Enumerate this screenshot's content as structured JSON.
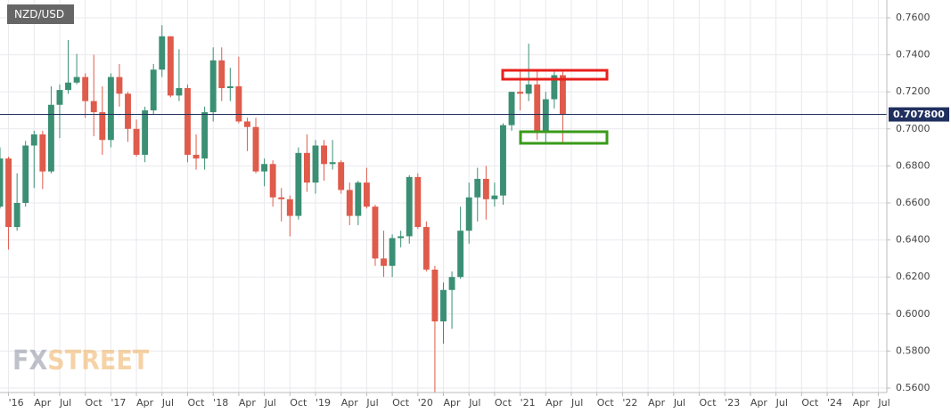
{
  "chart_data": {
    "type": "candlestick",
    "title": "NZD/USD",
    "watermark": [
      "FX",
      "STREET"
    ],
    "x": [
      "2015-12",
      "2016-01",
      "2016-02",
      "2016-03",
      "2016-04",
      "2016-05",
      "2016-06",
      "2016-07",
      "2016-08",
      "2016-09",
      "2016-10",
      "2016-11",
      "2016-12",
      "2017-01",
      "2017-02",
      "2017-03",
      "2017-04",
      "2017-05",
      "2017-06",
      "2017-07",
      "2017-08",
      "2017-09",
      "2017-10",
      "2017-11",
      "2017-12",
      "2018-01",
      "2018-02",
      "2018-03",
      "2018-04",
      "2018-05",
      "2018-06",
      "2018-07",
      "2018-08",
      "2018-09",
      "2018-10",
      "2018-11",
      "2018-12",
      "2019-01",
      "2019-02",
      "2019-03",
      "2019-04",
      "2019-05",
      "2019-06",
      "2019-07",
      "2019-08",
      "2019-09",
      "2019-10",
      "2019-11",
      "2019-12",
      "2020-01",
      "2020-02",
      "2020-03",
      "2020-04",
      "2020-05",
      "2020-06",
      "2020-07",
      "2020-08",
      "2020-09",
      "2020-10",
      "2020-11",
      "2020-12",
      "2021-01",
      "2021-02",
      "2021-03",
      "2021-04",
      "2021-05",
      "2021-06"
    ],
    "open": [
      0.658,
      0.684,
      0.647,
      0.66,
      0.691,
      0.697,
      0.677,
      0.713,
      0.721,
      0.725,
      0.728,
      0.715,
      0.709,
      0.694,
      0.728,
      0.719,
      0.7,
      0.686,
      0.71,
      0.732,
      0.75,
      0.718,
      0.722,
      0.686,
      0.684,
      0.709,
      0.737,
      0.722,
      0.723,
      0.704,
      0.701,
      0.677,
      0.681,
      0.663,
      0.662,
      0.653,
      0.687,
      0.671,
      0.691,
      0.681,
      0.682,
      0.667,
      0.653,
      0.671,
      0.658,
      0.63,
      0.626,
      0.641,
      0.642,
      0.674,
      0.647,
      0.624,
      0.596,
      0.613,
      0.62,
      0.645,
      0.663,
      0.673,
      0.662,
      0.664,
      0.702,
      0.72,
      0.719,
      0.724,
      0.698,
      0.716,
      0.729
    ],
    "high": [
      0.69,
      0.685,
      0.676,
      0.6935,
      0.699,
      0.699,
      0.723,
      0.724,
      0.748,
      0.7405,
      0.73,
      0.74,
      0.723,
      0.73,
      0.735,
      0.72,
      0.705,
      0.712,
      0.735,
      0.756,
      0.75,
      0.743,
      0.724,
      0.697,
      0.712,
      0.744,
      0.744,
      0.733,
      0.739,
      0.706,
      0.706,
      0.684,
      0.683,
      0.668,
      0.664,
      0.69,
      0.697,
      0.694,
      0.694,
      0.694,
      0.683,
      0.671,
      0.672,
      0.679,
      0.659,
      0.645,
      0.643,
      0.645,
      0.675,
      0.676,
      0.65,
      0.626,
      0.617,
      0.623,
      0.658,
      0.671,
      0.679,
      0.68,
      0.671,
      0.703,
      0.72,
      0.731,
      0.746,
      0.731,
      0.72,
      0.732,
      0.731
    ],
    "low": [
      0.657,
      0.6348,
      0.645,
      0.658,
      0.668,
      0.6675,
      0.676,
      0.695,
      0.719,
      0.724,
      0.706,
      0.696,
      0.686,
      0.69,
      0.712,
      0.693,
      0.685,
      0.682,
      0.708,
      0.728,
      0.717,
      0.715,
      0.682,
      0.678,
      0.678,
      0.704,
      0.715,
      0.715,
      0.703,
      0.688,
      0.676,
      0.669,
      0.658,
      0.65,
      0.642,
      0.651,
      0.666,
      0.665,
      0.672,
      0.678,
      0.665,
      0.648,
      0.648,
      0.657,
      0.626,
      0.62,
      0.62,
      0.636,
      0.638,
      0.646,
      0.623,
      0.547,
      0.584,
      0.592,
      0.619,
      0.638,
      0.65,
      0.651,
      0.658,
      0.659,
      0.699,
      0.71,
      0.715,
      0.694,
      0.692,
      0.711,
      0.692
    ],
    "close": [
      0.684,
      0.647,
      0.66,
      0.691,
      0.697,
      0.677,
      0.713,
      0.721,
      0.725,
      0.728,
      0.715,
      0.709,
      0.694,
      0.728,
      0.719,
      0.7,
      0.686,
      0.71,
      0.732,
      0.75,
      0.718,
      0.722,
      0.686,
      0.684,
      0.709,
      0.737,
      0.722,
      0.723,
      0.704,
      0.701,
      0.677,
      0.681,
      0.663,
      0.662,
      0.653,
      0.687,
      0.671,
      0.691,
      0.681,
      0.682,
      0.667,
      0.653,
      0.671,
      0.658,
      0.63,
      0.626,
      0.641,
      0.642,
      0.674,
      0.647,
      0.624,
      0.596,
      0.613,
      0.62,
      0.645,
      0.663,
      0.673,
      0.662,
      0.664,
      0.702,
      0.72,
      0.719,
      0.724,
      0.698,
      0.716,
      0.729,
      0.708
    ],
    "up_color": "#3b8f74",
    "down_color": "#df5b4b",
    "last_price": {
      "value": 0.7078,
      "label": "0.707800"
    },
    "last_price_color": "#1f2f5e",
    "xlim": [
      "2015-12",
      "2024-08"
    ],
    "xticks": [
      {
        "value": "2016-01",
        "label": "'16"
      },
      {
        "value": "2016-04",
        "label": "Apr"
      },
      {
        "value": "2016-07",
        "label": "Jul"
      },
      {
        "value": "2016-10",
        "label": "Oct"
      },
      {
        "value": "2017-01",
        "label": "'17"
      },
      {
        "value": "2017-04",
        "label": "Apr"
      },
      {
        "value": "2017-07",
        "label": "Jul"
      },
      {
        "value": "2017-10",
        "label": "Oct"
      },
      {
        "value": "2018-01",
        "label": "'18"
      },
      {
        "value": "2018-04",
        "label": "Apr"
      },
      {
        "value": "2018-07",
        "label": "Jul"
      },
      {
        "value": "2018-10",
        "label": "Oct"
      },
      {
        "value": "2019-01",
        "label": "'19"
      },
      {
        "value": "2019-04",
        "label": "Apr"
      },
      {
        "value": "2019-07",
        "label": "Jul"
      },
      {
        "value": "2019-10",
        "label": "Oct"
      },
      {
        "value": "2020-01",
        "label": "'20"
      },
      {
        "value": "2020-04",
        "label": "Apr"
      },
      {
        "value": "2020-07",
        "label": "Jul"
      },
      {
        "value": "2020-10",
        "label": "Oct"
      },
      {
        "value": "2021-01",
        "label": "'21"
      },
      {
        "value": "2021-04",
        "label": "Apr"
      },
      {
        "value": "2021-07",
        "label": "Jul"
      },
      {
        "value": "2021-10",
        "label": "Oct"
      },
      {
        "value": "2022-01",
        "label": "'22"
      },
      {
        "value": "2022-04",
        "label": "Apr"
      },
      {
        "value": "2022-07",
        "label": "Jul"
      },
      {
        "value": "2022-10",
        "label": "Oct"
      },
      {
        "value": "2023-01",
        "label": "'23"
      },
      {
        "value": "2023-04",
        "label": "Apr"
      },
      {
        "value": "2023-07",
        "label": "Jul"
      },
      {
        "value": "2023-10",
        "label": "Oct"
      },
      {
        "value": "2024-01",
        "label": "'24"
      },
      {
        "value": "2024-04",
        "label": "Apr"
      },
      {
        "value": "2024-07",
        "label": "Jul"
      }
    ],
    "ylim": [
      0.5576,
      0.7696
    ],
    "yticks": [
      {
        "value": 0.76,
        "label": "0.7600"
      },
      {
        "value": 0.74,
        "label": "0.7400"
      },
      {
        "value": 0.72,
        "label": "0.7200"
      },
      {
        "value": 0.7,
        "label": "0.7000"
      },
      {
        "value": 0.68,
        "label": "0.6800"
      },
      {
        "value": 0.66,
        "label": "0.6600"
      },
      {
        "value": 0.64,
        "label": "0.6400"
      },
      {
        "value": 0.62,
        "label": "0.6200"
      },
      {
        "value": 0.6,
        "label": "0.6000"
      },
      {
        "value": 0.58,
        "label": "0.5800"
      },
      {
        "value": 0.56,
        "label": "0.5600"
      }
    ],
    "grid": true
  }
}
